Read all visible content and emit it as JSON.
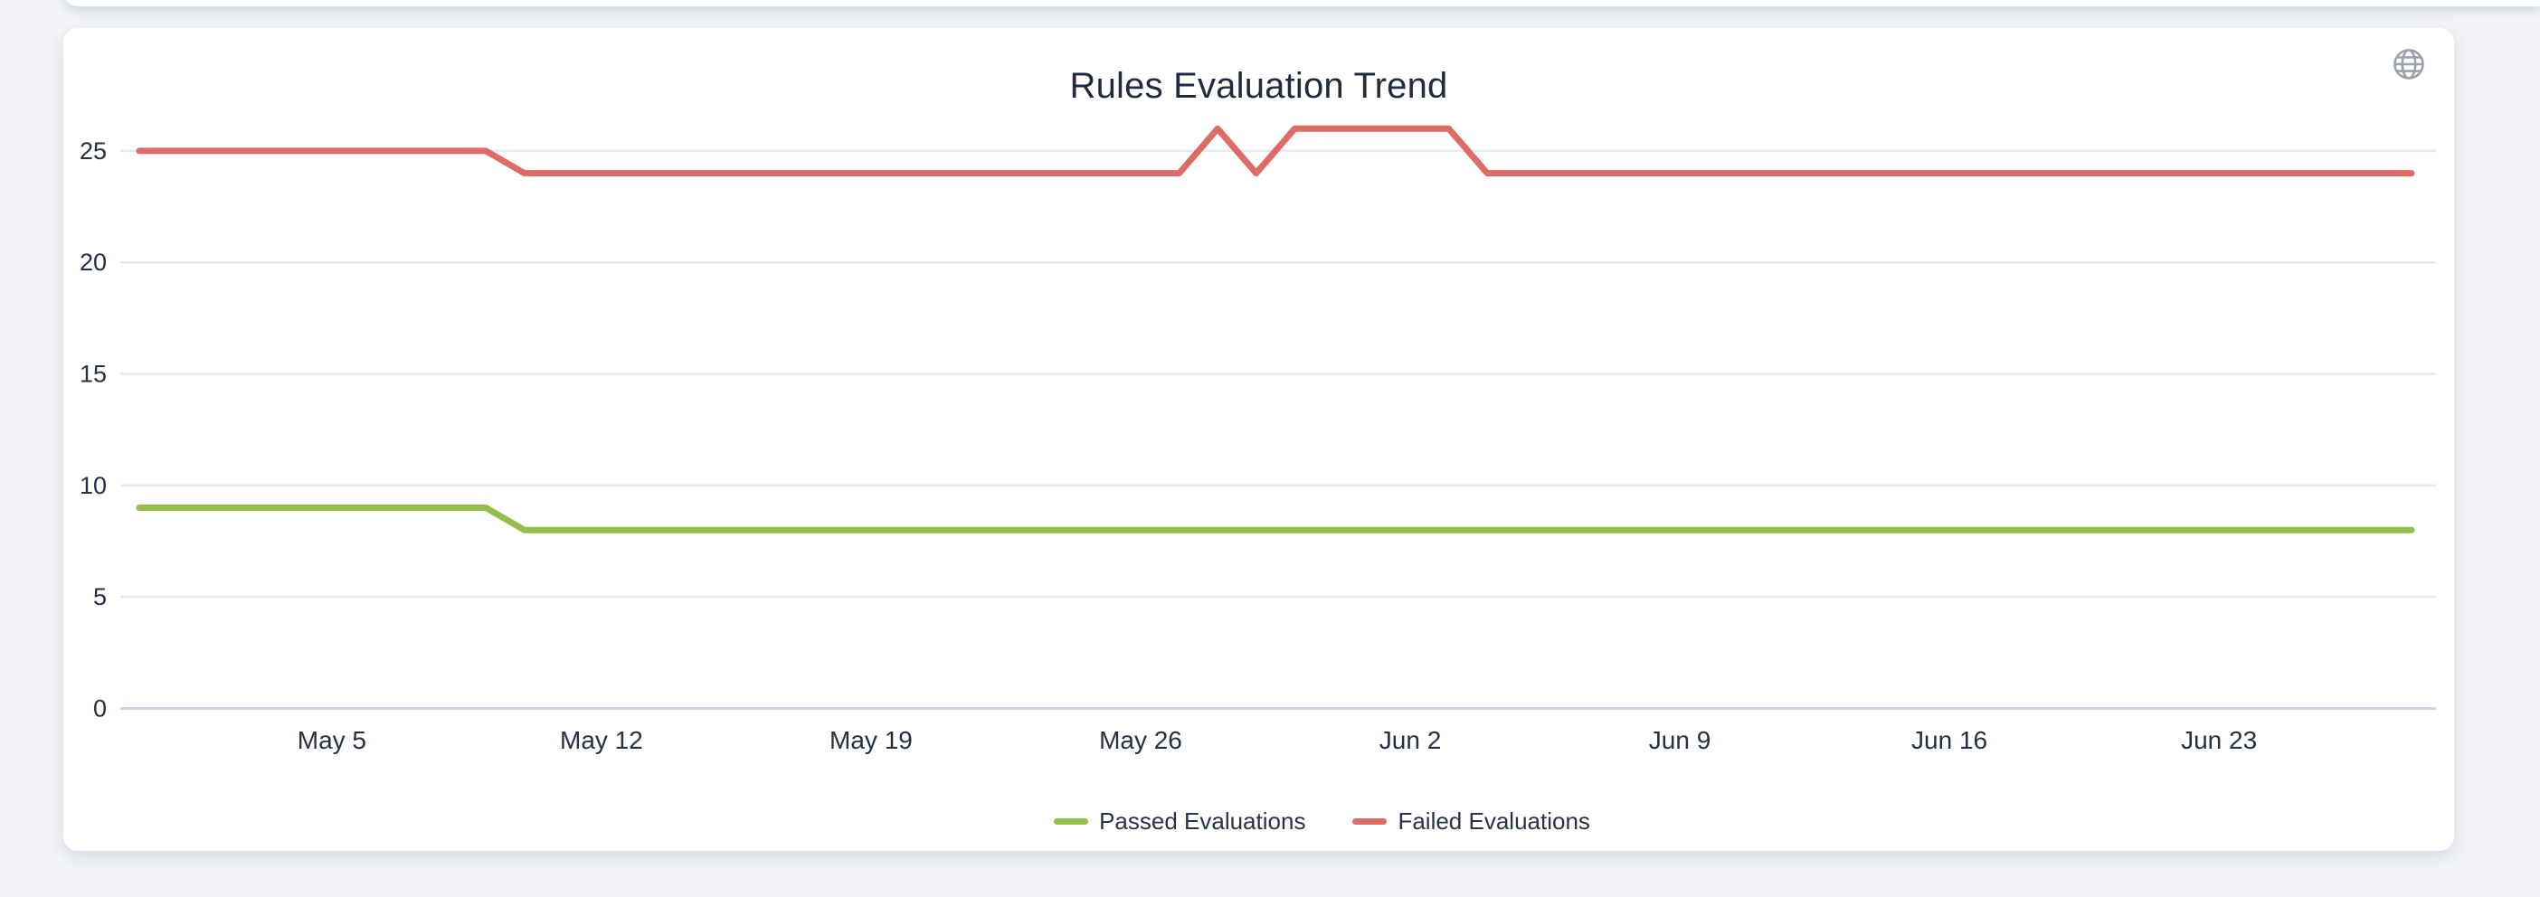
{
  "page": {
    "background_color": "#f3f5f8"
  },
  "card": {
    "title": "Rules Evaluation Trend",
    "icons": [
      {
        "name": "globe-icon",
        "color": "#9aa3ad"
      }
    ]
  },
  "chart_data": {
    "type": "line",
    "title": "Rules Evaluation Trend",
    "grid": true,
    "legend_position": "bottom",
    "ylim": [
      0,
      27
    ],
    "y_ticks": [
      0,
      5,
      10,
      15,
      20,
      25
    ],
    "x_tick_labels": [
      "May 5",
      "May 12",
      "May 19",
      "May 26",
      "Jun 2",
      "Jun 9",
      "Jun 16",
      "Jun 23"
    ],
    "x": [
      "Apr 30",
      "May 1",
      "May 2",
      "May 3",
      "May 4",
      "May 5",
      "May 6",
      "May 7",
      "May 8",
      "May 9",
      "May 10",
      "May 11",
      "May 12",
      "May 13",
      "May 14",
      "May 15",
      "May 16",
      "May 17",
      "May 18",
      "May 19",
      "May 20",
      "May 21",
      "May 22",
      "May 23",
      "May 24",
      "May 25",
      "May 26",
      "May 27",
      "May 28",
      "May 29",
      "May 30",
      "May 31",
      "Jun 1",
      "Jun 2",
      "Jun 3",
      "Jun 4",
      "Jun 5",
      "Jun 6",
      "Jun 7",
      "Jun 8",
      "Jun 9",
      "Jun 10",
      "Jun 11",
      "Jun 12",
      "Jun 13",
      "Jun 14",
      "Jun 15",
      "Jun 16",
      "Jun 17",
      "Jun 18",
      "Jun 19",
      "Jun 20",
      "Jun 21",
      "Jun 22",
      "Jun 23",
      "Jun 24",
      "Jun 25",
      "Jun 26",
      "Jun 27",
      "Jun 28"
    ],
    "series": [
      {
        "name": "Passed Evaluations",
        "color": "#94bd4c",
        "values": [
          9,
          9,
          9,
          9,
          9,
          9,
          9,
          9,
          9,
          9,
          8,
          8,
          8,
          8,
          8,
          8,
          8,
          8,
          8,
          8,
          8,
          8,
          8,
          8,
          8,
          8,
          8,
          8,
          8,
          8,
          8,
          8,
          8,
          8,
          8,
          8,
          8,
          8,
          8,
          8,
          8,
          8,
          8,
          8,
          8,
          8,
          8,
          8,
          8,
          8,
          8,
          8,
          8,
          8,
          8,
          8,
          8,
          8,
          8,
          8
        ]
      },
      {
        "name": "Failed Evaluations",
        "color": "#dd6b66",
        "values": [
          25,
          25,
          25,
          25,
          25,
          25,
          25,
          25,
          25,
          25,
          24,
          24,
          24,
          24,
          24,
          24,
          24,
          24,
          24,
          24,
          24,
          24,
          24,
          24,
          24,
          24,
          24,
          24,
          26,
          24,
          26,
          26,
          26,
          26,
          26,
          24,
          24,
          24,
          24,
          24,
          24,
          24,
          24,
          24,
          24,
          24,
          24,
          24,
          24,
          24,
          24,
          24,
          24,
          24,
          24,
          24,
          24,
          24,
          24,
          24
        ]
      }
    ],
    "colors": {
      "gridline": "#e8e9ec",
      "axis_line": "#c9d4e8",
      "tick_text": "#243044",
      "title_text": "#1f2b3e"
    }
  }
}
